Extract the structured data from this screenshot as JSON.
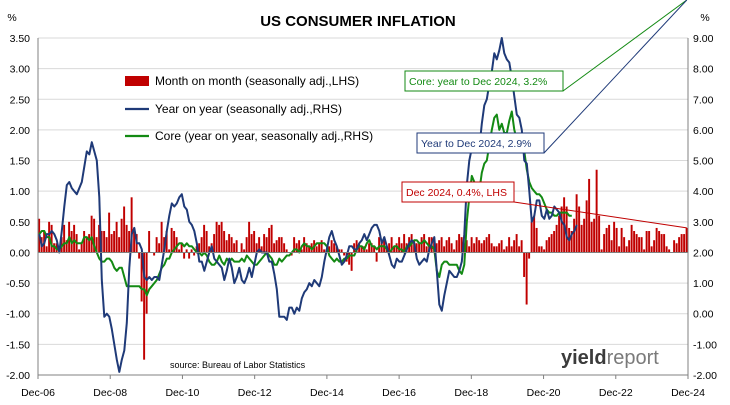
{
  "chart_data": {
    "type": "bar",
    "title": "US CONSUMER INFLATION",
    "source": "source: Bureau of Labor Statistics",
    "left_axis": {
      "unit": "%",
      "min": -2.0,
      "max": 3.5,
      "ticks": [
        3.5,
        3.0,
        2.5,
        2.0,
        1.5,
        1.0,
        0.5,
        0.0,
        -0.5,
        -1.0,
        -1.5,
        -2.0
      ]
    },
    "right_axis": {
      "unit": "%",
      "min": -2.0,
      "max": 9.0,
      "ticks": [
        9.0,
        8.0,
        7.0,
        6.0,
        5.0,
        4.0,
        3.0,
        2.0,
        1.0,
        0.0,
        -1.0,
        -2.0
      ]
    },
    "x_tick_labels": [
      "Dec-06",
      "Dec-08",
      "Dec-10",
      "Dec-12",
      "Dec-14",
      "Dec-16",
      "Dec-18",
      "Dec-20",
      "Dec-22",
      "Dec-24"
    ],
    "x_range": [
      "Dec-06",
      "Dec-24"
    ],
    "legend_position": "top-center",
    "series": [
      {
        "name": "Month on month (seasonally adj.,LHS)",
        "kind": "bar",
        "axis": "left",
        "color": "#c00000",
        "values": [
          0.55,
          0.25,
          0.35,
          0.1,
          0.5,
          0.45,
          0.15,
          0.15,
          0.0,
          0.25,
          0.45,
          0.2,
          0.5,
          0.35,
          0.45,
          0.3,
          0.05,
          0.15,
          0.35,
          0.25,
          0.3,
          0.6,
          0.55,
          0.25,
          0.45,
          0.35,
          0.35,
          0.25,
          0.65,
          0.3,
          0.35,
          0.5,
          0.25,
          0.55,
          0.75,
          0.45,
          0.35,
          0.9,
          0.4,
          0.3,
          -0.1,
          -0.8,
          -1.75,
          -1.0,
          0.35,
          0.0,
          -0.05,
          0.25,
          0.15,
          0.5,
          0.25,
          0.35,
          0.05,
          0.4,
          0.35,
          0.25,
          0.05,
          0.15,
          -0.1,
          0.05,
          -0.1,
          0.05,
          -0.05,
          0.1,
          0.15,
          0.25,
          0.45,
          0.35,
          0.1,
          0.15,
          0.3,
          0.5,
          0.45,
          0.5,
          0.35,
          0.2,
          0.3,
          0.25,
          0.15,
          0.2,
          0.0,
          0.15,
          0.05,
          0.25,
          0.5,
          0.3,
          0.35,
          0.15,
          0.25,
          0.1,
          0.3,
          0.25,
          0.4,
          0.45,
          0.15,
          0.2,
          0.25,
          0.25,
          0.15,
          0.05,
          0.0,
          -0.05,
          0.25,
          0.15,
          0.2,
          0.05,
          0.25,
          0.15,
          0.1,
          0.15,
          0.2,
          0.1,
          0.15,
          0.2,
          0.05,
          0.05,
          0.1,
          0.2,
          0.15,
          0.1,
          0.05,
          0.05,
          -0.05,
          -0.15,
          -0.2,
          -0.3,
          0.15,
          0.2,
          0.15,
          0.1,
          0.1,
          0.05,
          0.15,
          0.15,
          0.1,
          -0.15,
          0.25,
          0.15,
          0.25,
          0.1,
          0.15,
          0.25,
          0.1,
          0.15,
          0.25,
          0.15,
          0.3,
          0.15,
          0.25,
          0.3,
          0.2,
          0.15,
          0.15,
          0.25,
          0.3,
          0.1,
          0.25,
          0.25,
          0.2,
          0.15,
          0.2,
          0.25,
          0.1,
          0.2,
          0.25,
          0.15,
          0.05,
          0.2,
          0.3,
          0.25,
          0.15,
          0.2,
          0.1,
          0.25,
          0.15,
          0.25,
          0.2,
          0.15,
          0.2,
          0.25,
          0.3,
          0.15,
          0.1,
          0.1,
          0.15,
          0.2,
          0.05,
          0.1,
          0.25,
          0.1,
          0.2,
          0.3,
          0.1,
          0.2,
          -0.4,
          -0.85,
          -0.1,
          0.5,
          0.6,
          0.4,
          0.1,
          0.1,
          0.05,
          0.2,
          0.25,
          0.3,
          0.35,
          0.45,
          0.6,
          0.75,
          0.9,
          0.75,
          0.4,
          0.35,
          0.55,
          0.95,
          0.75,
          0.45,
          0.55,
          0.85,
          1.2,
          0.5,
          0.55,
          1.35,
          0.6,
          0.05,
          0.3,
          0.4,
          0.45,
          0.2,
          0.5,
          0.4,
          0.1,
          0.4,
          0.25,
          0.1,
          0.2,
          0.45,
          0.35,
          0.3,
          0.25,
          0.25,
          0.05,
          0.35,
          0.35,
          0.1,
          0.2,
          0.4,
          0.35,
          0.3,
          0.3,
          0.1,
          0.05,
          0.0,
          0.2,
          0.15,
          0.25,
          0.3,
          0.3,
          0.4
        ]
      },
      {
        "name": "Year on year (seasonally adj.,RHS)",
        "kind": "line",
        "axis": "right",
        "color": "#1f3a78",
        "values": [
          2.6,
          2.2,
          2.3,
          2.6,
          2.6,
          2.7,
          2.6,
          2.4,
          2.0,
          2.7,
          3.5,
          4.2,
          4.3,
          4.1,
          4.0,
          3.9,
          4.1,
          4.3,
          4.8,
          5.3,
          5.2,
          5.6,
          5.3,
          5.0,
          3.8,
          1.1,
          -0.1,
          0.0,
          -0.1,
          -0.5,
          -1.0,
          -1.5,
          -1.9,
          -1.5,
          -1.2,
          -0.3,
          1.5,
          2.6,
          2.8,
          2.3,
          2.3,
          2.1,
          1.2,
          1.1,
          1.2,
          1.1,
          1.2,
          1.2,
          1.1,
          1.6,
          2.1,
          2.7,
          3.2,
          3.6,
          3.5,
          3.6,
          3.8,
          3.9,
          3.5,
          3.4,
          3.0,
          2.9,
          2.7,
          2.3,
          1.7,
          1.7,
          1.4,
          1.7,
          2.0,
          2.2,
          1.8,
          1.7,
          1.6,
          1.5,
          1.1,
          1.4,
          1.8,
          1.5,
          1.0,
          1.2,
          1.5,
          1.1,
          1.0,
          1.2,
          1.5,
          1.2,
          1.6,
          2.0,
          2.1,
          2.0,
          2.0,
          2.0,
          1.7,
          1.7,
          1.3,
          0.8,
          -0.1,
          -0.1,
          -0.1,
          -0.2,
          0.2,
          0.2,
          0.0,
          0.2,
          0.1,
          0.5,
          0.7,
          0.8,
          1.0,
          0.9,
          1.1,
          1.0,
          0.9,
          1.2,
          1.7,
          2.1,
          2.5,
          2.7,
          2.4,
          2.2,
          1.9,
          1.6,
          1.7,
          1.9,
          2.2,
          2.2,
          2.1,
          2.1,
          2.3,
          2.4,
          2.6,
          2.4,
          2.6,
          2.8,
          2.9,
          2.9,
          2.7,
          2.3,
          2.5,
          2.2,
          1.9,
          1.6,
          1.5,
          1.8,
          1.7,
          1.7,
          1.9,
          2.1,
          2.3,
          2.4,
          2.3,
          1.8,
          1.6,
          1.7,
          1.8,
          1.7,
          2.1,
          2.3,
          2.5,
          1.4,
          0.3,
          0.1,
          0.6,
          1.0,
          1.4,
          1.3,
          1.2,
          1.2,
          1.4,
          1.7,
          2.6,
          4.2,
          5.0,
          5.4,
          5.4,
          5.3,
          5.4,
          6.2,
          6.8,
          7.0,
          7.5,
          7.9,
          8.5,
          8.3,
          8.6,
          9.0,
          8.5,
          8.3,
          8.2,
          7.7,
          7.1,
          6.5,
          6.4,
          6.0,
          5.0,
          4.9,
          4.0,
          3.0,
          3.2,
          3.7,
          3.7,
          3.2,
          3.1,
          3.4,
          3.1,
          3.2,
          3.5,
          3.4,
          3.3,
          3.0,
          2.9,
          2.5,
          2.4,
          2.6,
          2.7,
          2.9
        ]
      },
      {
        "name": "Core (year on year, seasonally adj.,RHS)",
        "kind": "line",
        "axis": "right",
        "color": "#138a13",
        "values": [
          2.6,
          2.7,
          2.7,
          2.5,
          2.5,
          2.2,
          2.2,
          2.1,
          2.1,
          2.2,
          2.3,
          2.3,
          2.5,
          2.3,
          2.4,
          2.3,
          2.3,
          2.3,
          2.5,
          2.5,
          2.4,
          2.5,
          2.2,
          2.0,
          1.8,
          1.7,
          1.7,
          1.8,
          1.8,
          1.7,
          1.5,
          1.4,
          1.5,
          1.5,
          1.2,
          0.9,
          0.9,
          0.9,
          0.9,
          0.9,
          0.9,
          0.8,
          0.8,
          0.6,
          0.8,
          0.9,
          1.0,
          1.1,
          1.3,
          1.5,
          1.6,
          1.8,
          1.8,
          2.0,
          2.1,
          2.2,
          2.3,
          2.3,
          2.2,
          2.3,
          2.2,
          2.2,
          2.1,
          2.0,
          2.0,
          1.9,
          2.0,
          1.9,
          1.7,
          1.6,
          1.6,
          1.7,
          1.9,
          1.7,
          1.6,
          1.8,
          1.7,
          1.8,
          1.7,
          1.7,
          1.7,
          1.8,
          1.7,
          1.9,
          1.8,
          1.7,
          1.6,
          1.6,
          1.7,
          1.8,
          1.9,
          2.0,
          1.9,
          1.8,
          1.6,
          1.6,
          1.8,
          1.7,
          1.8,
          1.9,
          1.9,
          2.0,
          2.1,
          2.1,
          2.0,
          2.2,
          2.3,
          2.2,
          2.2,
          2.1,
          2.2,
          2.3,
          2.3,
          2.3,
          2.3,
          2.2,
          1.9,
          1.8,
          1.7,
          1.8,
          1.7,
          1.7,
          1.8,
          1.8,
          1.9,
          1.9,
          1.9,
          2.1,
          2.2,
          2.2,
          2.1,
          2.3,
          2.4,
          2.2,
          2.2,
          2.1,
          2.2,
          2.2,
          2.2,
          2.1,
          2.0,
          2.1,
          2.2,
          2.2,
          2.1,
          2.1,
          2.0,
          2.2,
          2.2,
          2.3,
          2.4,
          2.4,
          2.3,
          2.3,
          2.4,
          2.3,
          2.2,
          2.2,
          2.1,
          1.4,
          1.2,
          1.6,
          1.7,
          1.7,
          1.6,
          1.6,
          1.6,
          1.6,
          1.4,
          1.3,
          1.6,
          3.0,
          3.8,
          4.5,
          4.3,
          4.0,
          4.0,
          4.6,
          4.9,
          5.0,
          5.5,
          6.0,
          6.4,
          6.5,
          6.0,
          6.2,
          5.9,
          5.9,
          6.3,
          6.6,
          6.0,
          5.7,
          5.5,
          5.6,
          5.3,
          4.7,
          4.3,
          4.1,
          4.0,
          3.9,
          3.9,
          3.8,
          3.6,
          3.4,
          3.3,
          3.3,
          3.2,
          3.2,
          3.3,
          3.3,
          3.3,
          3.3,
          3.2,
          3.2
        ]
      }
    ],
    "annotations": [
      {
        "text": "Core: year to Dec 2024, 3.2%",
        "color": "#138a13",
        "series": "Core (year on year, seasonally adj.,RHS)"
      },
      {
        "text": "Year to Dec 2024, 2.9%",
        "color": "#1f3a78",
        "series": "Year on year (seasonally adj.,RHS)"
      },
      {
        "text": "Dec 2024, 0.4%, LHS",
        "color": "#c00000",
        "series": "Month on month (seasonally adj.,LHS)"
      }
    ],
    "watermark": {
      "part1": "yield",
      "part2": "report"
    }
  }
}
